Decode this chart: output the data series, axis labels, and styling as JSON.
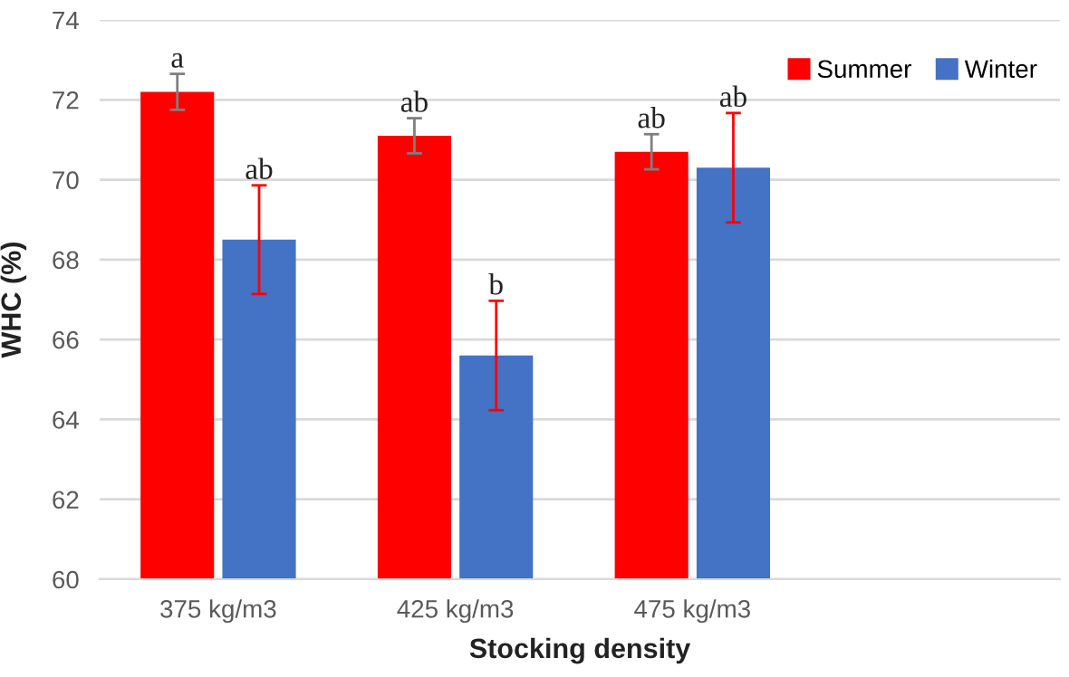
{
  "chart_data": {
    "type": "bar",
    "xlabel": "Stocking density",
    "ylabel": "WHC (%)",
    "categories": [
      "375 kg/m3",
      "425 kg/m3",
      "475 kg/m3"
    ],
    "series": [
      {
        "name": "Summer",
        "color": "#ff0000",
        "values": [
          72.2,
          71.1,
          70.7
        ],
        "errors": [
          0.45,
          0.44,
          0.44
        ]
      },
      {
        "name": "Winter",
        "color": "#4472c4",
        "values": [
          68.5,
          65.6,
          70.3
        ],
        "errors": [
          1.36,
          1.37,
          1.37
        ]
      }
    ],
    "ylim": [
      60,
      74
    ],
    "yticks": [
      60,
      62,
      64,
      66,
      68,
      70,
      72,
      74
    ],
    "grid": "y",
    "legend": "top right",
    "annotations": [
      "a",
      "ab",
      "ab",
      "b",
      "ab",
      "ab"
    ]
  }
}
